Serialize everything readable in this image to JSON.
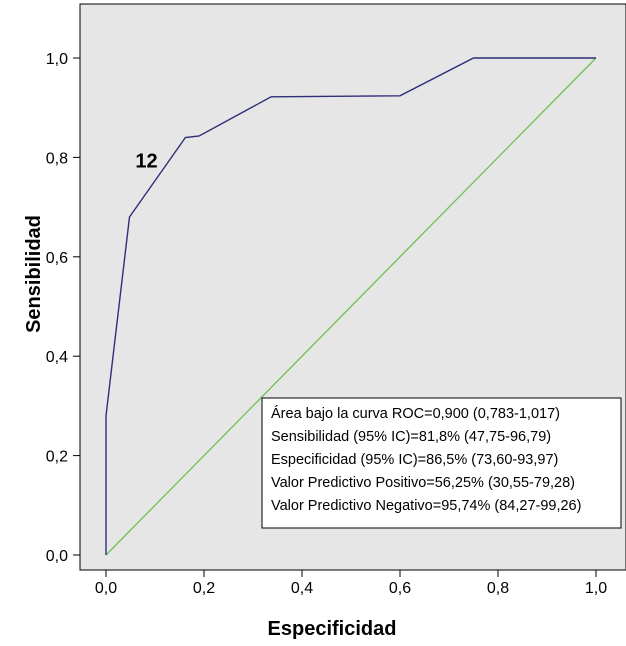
{
  "chart_data": {
    "type": "line",
    "xlabel": "Especificidad",
    "ylabel": "Sensibilidad",
    "xlim": [
      0,
      1
    ],
    "ylim": [
      0,
      1
    ],
    "x_ticks": [
      "0,0",
      "0,2",
      "0,4",
      "0,6",
      "0,8",
      "1,0"
    ],
    "y_ticks": [
      "0,0",
      "0,2",
      "0,4",
      "0,6",
      "0,8",
      "1,0"
    ],
    "grid": false,
    "background": "#e6e6e6",
    "series": [
      {
        "style": "roc",
        "color": "#2e2e7a",
        "x": [
          0.0,
          0.0,
          0.048,
          0.162,
          0.19,
          0.337,
          0.6,
          0.75,
          1.0
        ],
        "y": [
          0.0,
          0.28,
          0.68,
          0.84,
          0.843,
          0.922,
          0.924,
          1.0,
          1.0
        ]
      },
      {
        "style": "reference",
        "color": "#6fbf4f",
        "x": [
          0.0,
          1.0
        ],
        "y": [
          0.0,
          1.0
        ]
      }
    ],
    "annotations": [
      {
        "text": "12",
        "x": 0.06,
        "y": 0.78
      }
    ],
    "stats_box": [
      "Área bajo la curva ROC=0,900 (0,783-1,017)",
      "Sensibilidad (95% IC)=81,8% (47,75-96,79)",
      "Especificidad (95% IC)=86,5% (73,60-93,97)",
      "Valor Predictivo Positivo=56,25% (30,55-79,28)",
      "Valor Predictivo Negativo=95,74% (84,27-99,26)"
    ]
  }
}
